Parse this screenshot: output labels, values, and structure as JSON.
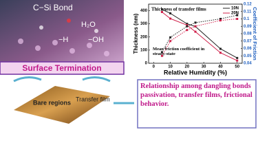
{
  "scene": {
    "bond_label": "C−Si Bond",
    "water_label": "H₂O",
    "h_label": "−H",
    "oh_label": "−OH",
    "banner": "Surface Termination",
    "bare_label": "Bare regions",
    "film_label": "Transfer film",
    "conclusion": "Relationship among dangling bonds passivation, transfer films, frictional behavior."
  },
  "chart_data": {
    "type": "line",
    "x_label": "Relative Humidity (%)",
    "y_label": "Thickness (nm)",
    "y2_label": "Coefficient of Friction",
    "annotations": [
      "Thickness of transfer films",
      "Mean friction coefficient in steady-state"
    ],
    "x": [
      5,
      10,
      20,
      25,
      40,
      50
    ],
    "xlim": [
      -3,
      53
    ],
    "xticks": [
      0,
      10,
      20,
      30,
      40,
      50
    ],
    "ylim": [
      0,
      450
    ],
    "yticks": [
      0,
      100,
      200,
      300,
      400
    ],
    "y2lim": [
      0.04,
      0.12
    ],
    "y2ticks": [
      0.04,
      0.05,
      0.06,
      0.07,
      0.08,
      0.09,
      0.1,
      0.11,
      0.12
    ],
    "legend": "upper right",
    "series": [
      {
        "name": "10N",
        "color": "#222222",
        "values": [
          410,
          380,
          300,
          280,
          110,
          40
        ]
      },
      {
        "name": "20N",
        "color": "#d0204a",
        "values": [
          390,
          340,
          290,
          240,
          80,
          20
        ]
      },
      {
        "color": "#222222",
        "axis": "y2",
        "values": [
          0.055,
          0.075,
          0.09,
          0.095,
          0.1,
          0.105
        ]
      },
      {
        "color": "#d0204a",
        "axis": "y2",
        "values": [
          0.05,
          0.07,
          0.085,
          0.09,
          0.098,
          0.1
        ]
      }
    ]
  }
}
